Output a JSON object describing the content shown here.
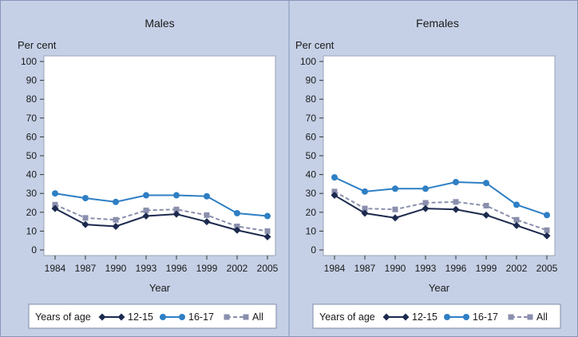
{
  "chart_data": [
    {
      "type": "line",
      "title": "Males",
      "ylabel": "Per cent",
      "xlabel": "Year",
      "x": [
        1984,
        1987,
        1990,
        1993,
        1996,
        1999,
        2002,
        2005
      ],
      "ylim": [
        0,
        100
      ],
      "yticks": [
        0,
        10,
        20,
        30,
        40,
        50,
        60,
        70,
        80,
        90,
        100
      ],
      "series": [
        {
          "name": "12-15",
          "values": [
            22,
            13.5,
            12.5,
            18,
            19,
            15,
            10.5,
            7
          ]
        },
        {
          "name": "16-17",
          "values": [
            30,
            27.5,
            25.5,
            29,
            29,
            28.5,
            19.5,
            18
          ]
        },
        {
          "name": "All",
          "values": [
            24,
            17,
            16,
            21,
            21.5,
            18.5,
            12.5,
            10
          ]
        }
      ],
      "legend": {
        "title": "Years of age",
        "position": "bottom"
      }
    },
    {
      "type": "line",
      "title": "Females",
      "ylabel": "Per cent",
      "xlabel": "Year",
      "x": [
        1984,
        1987,
        1990,
        1993,
        1996,
        1999,
        2002,
        2005
      ],
      "ylim": [
        0,
        100
      ],
      "yticks": [
        0,
        10,
        20,
        30,
        40,
        50,
        60,
        70,
        80,
        90,
        100
      ],
      "series": [
        {
          "name": "12-15",
          "values": [
            29,
            19.5,
            17,
            22,
            21.5,
            18.5,
            13,
            7.5
          ]
        },
        {
          "name": "16-17",
          "values": [
            38.5,
            31,
            32.5,
            32.5,
            36,
            35.5,
            24,
            18.5
          ]
        },
        {
          "name": "All",
          "values": [
            31,
            22,
            21.5,
            25,
            25.5,
            23.5,
            16,
            10.5
          ]
        }
      ],
      "legend": {
        "title": "Years of age",
        "position": "bottom"
      }
    }
  ],
  "series_style": [
    {
      "color": "#1c2a4e",
      "marker": "diamond",
      "dash": "solid"
    },
    {
      "color": "#2f7fc4",
      "marker": "circle",
      "dash": "solid"
    },
    {
      "color": "#8a8fad",
      "marker": "square",
      "dash": "dashed"
    }
  ],
  "colors": {
    "background": "#c5d0e6",
    "plot_area": "#ffffff"
  }
}
